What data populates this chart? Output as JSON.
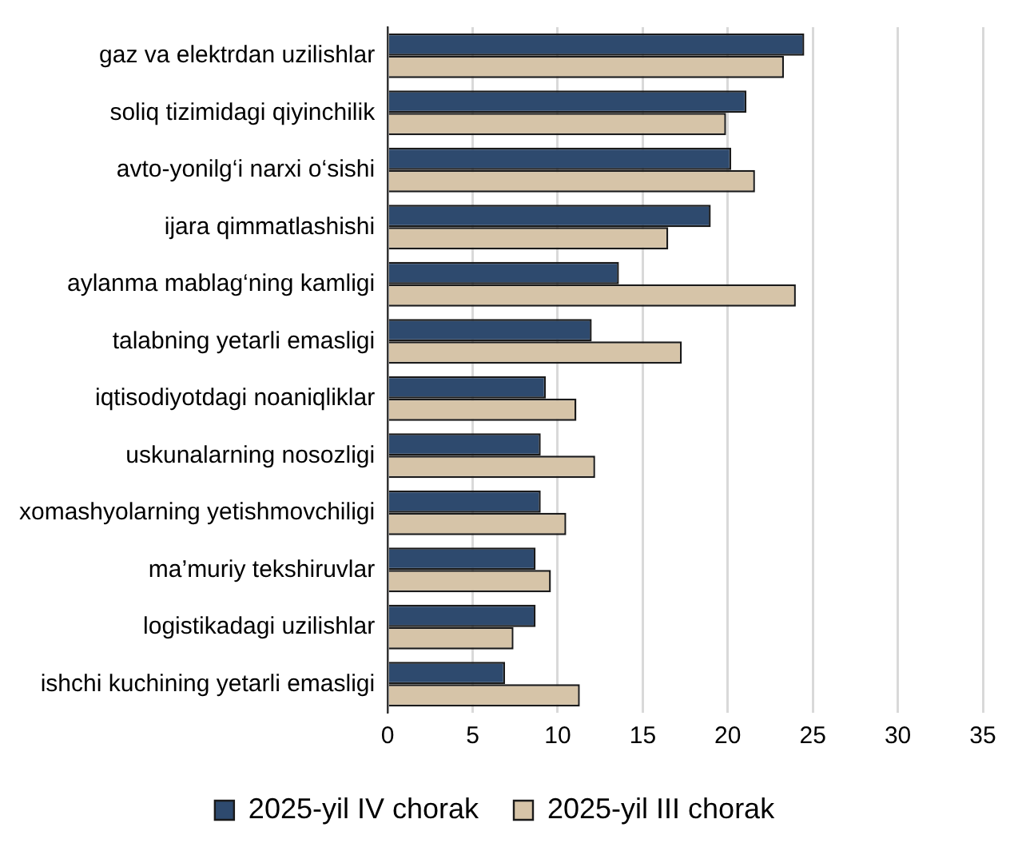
{
  "chart_data": {
    "type": "bar",
    "orientation": "horizontal",
    "categories": [
      "gaz va elektrdan uzilishlar",
      "soliq tizimidagi qiyinchilik",
      "avto-yonilg‘i narxi o‘sishi",
      "ijara qimmatlashishi",
      "aylanma mablag‘ning kamligi",
      "talabning yetarli emasligi",
      "iqtisodiyotdagi noaniqliklar",
      "uskunalarning nosozligi",
      "xomashyolarning yetishmovchiligi",
      "ma’muriy tekshiruvlar",
      "logistikadagi uzilishlar",
      "ishchi kuchining yetarli emasligi"
    ],
    "series": [
      {
        "name": "2025-yil IV chorak",
        "color": "#2e4a6e",
        "values": [
          24.5,
          21.1,
          20.2,
          19.0,
          13.6,
          12.0,
          9.3,
          9.0,
          9.0,
          8.7,
          8.7,
          6.9
        ]
      },
      {
        "name": "2025-yil III chorak",
        "color": "#d6c4a8",
        "values": [
          23.3,
          19.9,
          21.6,
          16.5,
          24.0,
          17.3,
          11.1,
          12.2,
          10.5,
          9.6,
          7.4,
          11.3
        ]
      }
    ],
    "xlim": [
      0,
      35
    ],
    "xticks": [
      0,
      5,
      10,
      15,
      20,
      25,
      30,
      35
    ],
    "grid": "x",
    "legend": "bottom"
  }
}
